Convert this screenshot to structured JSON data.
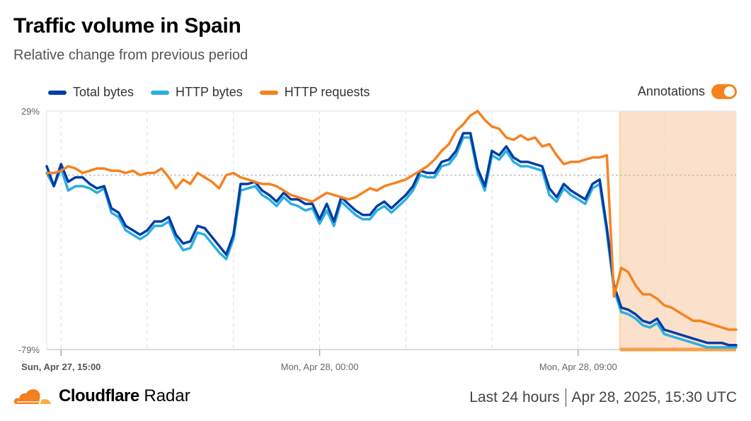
{
  "header": {
    "title": "Traffic volume in Spain",
    "subtitle": "Relative change from previous period"
  },
  "legend": {
    "items": [
      {
        "label": "Total bytes",
        "color": "#003da5"
      },
      {
        "label": "HTTP bytes",
        "color": "#2bafe0"
      },
      {
        "label": "HTTP requests",
        "color": "#f6821f"
      }
    ]
  },
  "annotations": {
    "label": "Annotations",
    "enabled": true,
    "color": "#f6821f"
  },
  "footer": {
    "brand_bold": "Cloudflare",
    "brand_light": "Radar",
    "range": "Last 24 hours",
    "timestamp": "Apr 28, 2025, 15:30 UTC"
  },
  "chart_data": {
    "type": "line",
    "title": "Traffic volume in Spain",
    "subtitle": "Relative change from previous period",
    "xlabel": "",
    "ylabel": "",
    "ylim": [
      -79,
      29
    ],
    "y_ticks": [
      "29%",
      "-79%"
    ],
    "x_ticks": [
      {
        "label": "Sun, Apr 27, 15:00",
        "index": 2,
        "bold": true
      },
      {
        "label": "Mon, Apr 28, 00:00",
        "index": 38,
        "bold": false
      },
      {
        "label": "Mon, Apr 28, 09:00",
        "index": 74,
        "bold": false
      }
    ],
    "x_interval": "15 minutes",
    "x_start": "Sun, Apr 27, 14:30",
    "zero_line": true,
    "grid": "vertical dashed",
    "legend_position": "top-left",
    "annotation_region": {
      "start_index": 80,
      "end_index": 96,
      "color": "#fbe1cc"
    },
    "series": [
      {
        "name": "Total bytes",
        "color": "#003da5",
        "values": [
          4,
          -5,
          5,
          -3,
          -1,
          -1,
          -4,
          -6,
          -5,
          -15,
          -17,
          -23,
          -25,
          -27,
          -25,
          -21,
          -21,
          -19,
          -27,
          -31,
          -30,
          -23,
          -24,
          -28,
          -32,
          -36,
          -27,
          -4,
          -4,
          -3,
          -7,
          -9,
          -12,
          -8,
          -11,
          -11,
          -13,
          -13,
          -20,
          -13,
          -21,
          -10,
          -13,
          -16,
          -18,
          -18,
          -14,
          -12,
          -15,
          -12,
          -9,
          -5,
          2,
          1,
          1,
          6,
          7,
          11,
          19,
          19,
          3,
          -5,
          11,
          9,
          13,
          8,
          6,
          6,
          5,
          4,
          -6,
          -10,
          -4,
          -7,
          -9,
          -11,
          -4,
          -2,
          -24,
          -50,
          -60,
          -61,
          -63,
          -66,
          -67,
          -65,
          -70,
          -71,
          -72,
          -73,
          -74,
          -75,
          -76,
          -76,
          -76,
          -77,
          -77
        ],
        "values_note": "truncated trace; early points approximate"
      },
      {
        "name": "HTTP bytes",
        "color": "#2bafe0",
        "values": [
          1,
          -5,
          3,
          -7,
          -5,
          -5,
          -6,
          -8,
          -6,
          -17,
          -19,
          -25,
          -27,
          -29,
          -27,
          -23,
          -23,
          -21,
          -29,
          -34,
          -33,
          -26,
          -27,
          -31,
          -35,
          -38,
          -29,
          -7,
          -6,
          -5,
          -9,
          -11,
          -14,
          -10,
          -13,
          -14,
          -16,
          -15,
          -22,
          -16,
          -23,
          -12,
          -15,
          -18,
          -20,
          -20,
          -16,
          -14,
          -17,
          -14,
          -11,
          -7,
          0,
          -1,
          -1,
          4,
          5,
          9,
          17,
          17,
          1,
          -7,
          9,
          7,
          11,
          6,
          4,
          4,
          3,
          2,
          -9,
          -12,
          -6,
          -9,
          -11,
          -13,
          -6,
          -4,
          -26,
          -52,
          -62,
          -63,
          -65,
          -68,
          -69,
          -67,
          -72,
          -73,
          -74,
          -75,
          -76,
          -77,
          -78,
          -78,
          -78,
          -78,
          -78
        ]
      },
      {
        "name": "HTTP requests",
        "color": "#f6821f",
        "values": [
          1,
          1,
          2,
          4,
          3,
          1,
          2,
          3,
          3,
          2,
          2,
          1,
          2,
          0,
          1,
          1,
          3,
          -1,
          -6,
          -2,
          -4,
          1,
          -1,
          -3,
          -6,
          0,
          1,
          -1,
          -2,
          -3,
          -4,
          -4,
          -5,
          -7,
          -9,
          -10,
          -11,
          -12,
          -10,
          -8,
          -9,
          -10,
          -11,
          -10,
          -8,
          -6,
          -7,
          -5,
          -4,
          -3,
          -2,
          0,
          2,
          4,
          7,
          11,
          14,
          20,
          23,
          27,
          29,
          25,
          22,
          21,
          17,
          16,
          18,
          16,
          17,
          13,
          14,
          9,
          5,
          6,
          6,
          7,
          8,
          8,
          9,
          -55,
          -42,
          -44,
          -50,
          -54,
          -54,
          -56,
          -59,
          -60,
          -62,
          -64,
          -66,
          -66,
          -67,
          -68,
          -69,
          -70,
          -70
        ]
      }
    ]
  }
}
